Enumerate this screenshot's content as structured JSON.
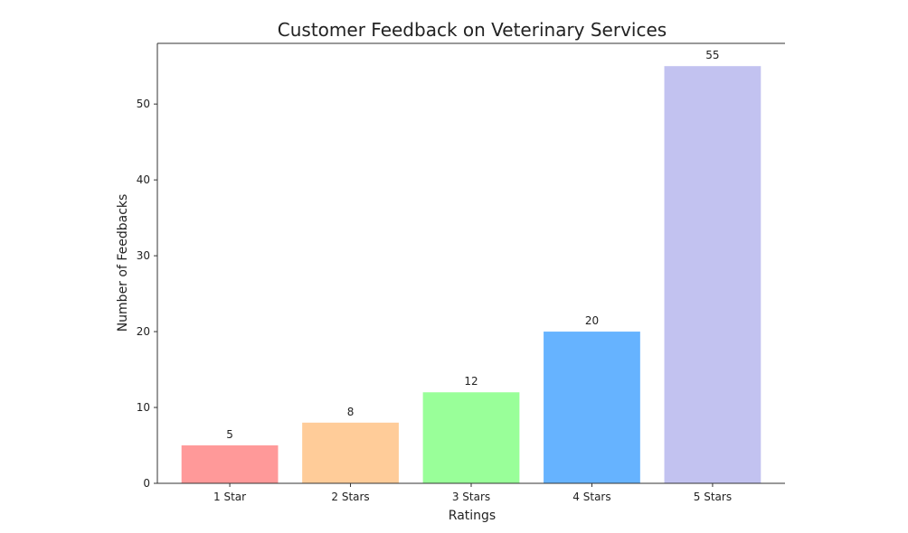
{
  "chart_data": {
    "type": "bar",
    "title": "Customer Feedback on Veterinary Services",
    "xlabel": "Ratings",
    "ylabel": "Number of Feedbacks",
    "categories": [
      "1 Star",
      "2 Stars",
      "3 Stars",
      "4 Stars",
      "5 Stars"
    ],
    "values": [
      5,
      8,
      12,
      20,
      55
    ],
    "colors": [
      "#ff9999",
      "#ffcc99",
      "#99ff99",
      "#66b3ff",
      "#c2c2f0"
    ],
    "ylim": [
      0,
      58
    ],
    "yticks": [
      0,
      10,
      20,
      30,
      40,
      50
    ],
    "grid": false,
    "data_labels": true
  }
}
